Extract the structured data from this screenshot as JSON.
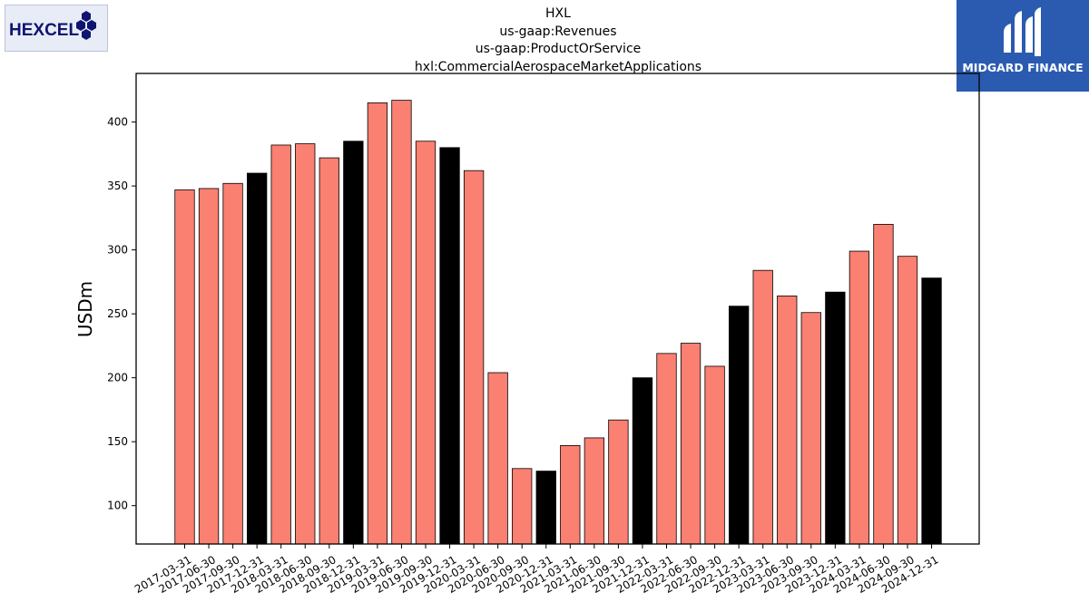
{
  "header": {
    "title_lines": [
      "HXL",
      "us-gaap:Revenues",
      "us-gaap:ProductOrService",
      "hxl:CommercialAerospaceMarketApplications"
    ]
  },
  "logos": {
    "company_name": "HEXCEL",
    "brand_name": "MIDGARD FINANCE"
  },
  "colors": {
    "quarter_bar": "#fa8072",
    "year_end_bar": "#000000",
    "brand_panel": "#2b5bb0",
    "company_logo_text": "#0f1470"
  },
  "chart_data": {
    "type": "bar",
    "title": "HXL us-gaap:Revenues us-gaap:ProductOrService hxl:CommercialAerospaceMarketApplications",
    "xlabel": "",
    "ylabel": "USDm",
    "ylim": [
      70,
      438
    ],
    "yticks": [
      100,
      150,
      200,
      250,
      300,
      350,
      400
    ],
    "grid": false,
    "categories": [
      "2017-03-31",
      "2017-06-30",
      "2017-09-30",
      "2017-12-31",
      "2018-03-31",
      "2018-06-30",
      "2018-09-30",
      "2018-12-31",
      "2019-03-31",
      "2019-06-30",
      "2019-09-30",
      "2019-12-31",
      "2020-03-31",
      "2020-06-30",
      "2020-09-30",
      "2020-12-31",
      "2021-03-31",
      "2021-06-30",
      "2021-09-30",
      "2021-12-31",
      "2022-03-31",
      "2022-06-30",
      "2022-09-30",
      "2022-12-31",
      "2023-03-31",
      "2023-06-30",
      "2023-09-30",
      "2023-12-31",
      "2024-03-31",
      "2024-06-30",
      "2024-09-30",
      "2024-12-31"
    ],
    "values": [
      347,
      348,
      352,
      360,
      382,
      383,
      372,
      385,
      415,
      417,
      385,
      380,
      362,
      204,
      129,
      127,
      147,
      153,
      167,
      200,
      219,
      227,
      209,
      256,
      284,
      264,
      251,
      267,
      299,
      320,
      295,
      278
    ],
    "highlight": "year-end (xxxx-12-31) bars drawn in black, other quarters in salmon"
  }
}
